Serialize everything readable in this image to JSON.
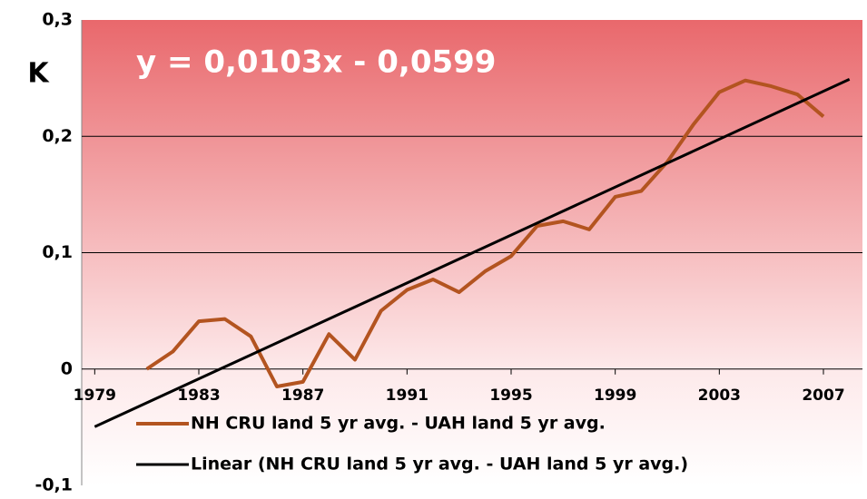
{
  "chart_data": {
    "type": "line",
    "annotation": "y = 0,0103x - 0,0599",
    "ylabel": "K",
    "xlim": [
      1978.5,
      2008.5
    ],
    "xticks": [
      1979,
      1983,
      1987,
      1991,
      1995,
      1999,
      2003,
      2007
    ],
    "ylim": [
      -0.1,
      0.3
    ],
    "yticks": [
      {
        "value": -0.1,
        "label": "-0,1"
      },
      0,
      {
        "value": 0.1,
        "label": "0,1"
      },
      {
        "value": 0.2,
        "label": "0,2"
      },
      {
        "value": 0.3,
        "label": "0,3"
      }
    ],
    "grid": true,
    "legend": "bottom",
    "series": [
      {
        "name": "NH CRU land 5 yr avg. - UAH land 5 yr avg.",
        "color": "#b35420",
        "x": [
          1981,
          1982,
          1983,
          1984,
          1985,
          1986,
          1987,
          1988,
          1989,
          1990,
          1991,
          1992,
          1993,
          1994,
          1995,
          1996,
          1997,
          1998,
          1999,
          2000,
          2001,
          2002,
          2003,
          2004,
          2005,
          2006,
          2007
        ],
        "values": [
          0,
          0.015,
          0.041,
          0.043,
          0.028,
          -0.015,
          -0.011,
          0.03,
          0.008,
          0.05,
          0.068,
          0.077,
          0.066,
          0.084,
          0.097,
          0.123,
          0.127,
          0.12,
          0.148,
          0.153,
          0.178,
          0.21,
          0.238,
          0.248,
          0.243,
          0.236,
          0.217
        ]
      },
      {
        "name": "Linear (NH CRU land 5 yr avg. - UAH land 5 yr avg.)",
        "color": "#000000",
        "x": [
          1979,
          2008
        ],
        "values": [
          -0.0496,
          0.249
        ]
      }
    ]
  }
}
